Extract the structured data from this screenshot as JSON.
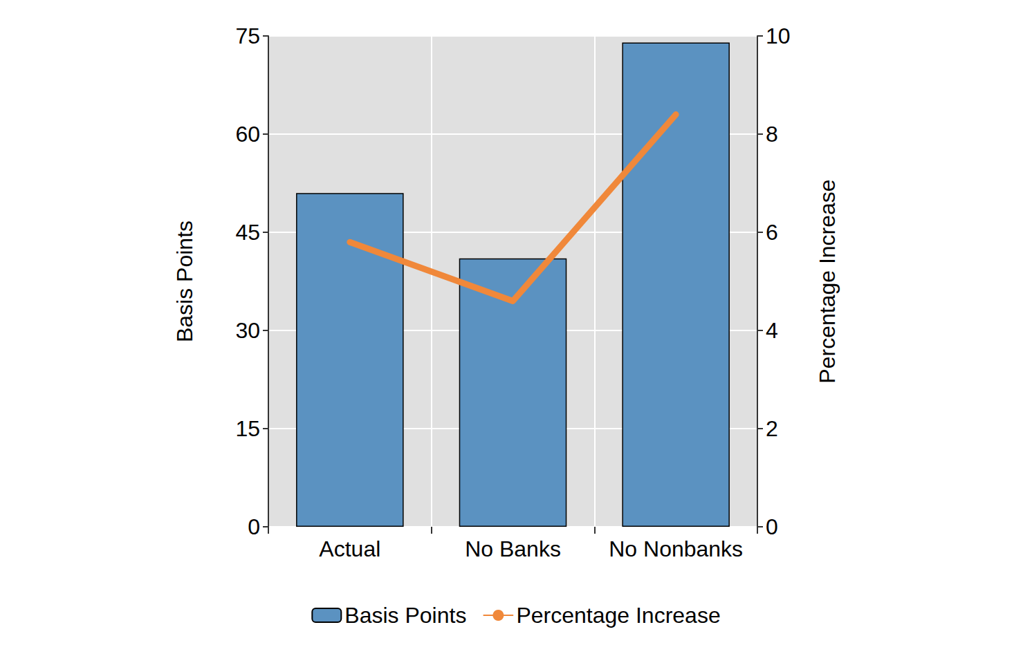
{
  "chart_data": {
    "type": "bar",
    "categories": [
      "Actual",
      "No Banks",
      "No Nonbanks"
    ],
    "series": [
      {
        "name": "Basis Points",
        "type": "bar",
        "color": "#5b92c1",
        "values": [
          51,
          41,
          74
        ]
      },
      {
        "name": "Percentage Increase",
        "type": "line",
        "axis": "y2",
        "color": "#f0883a",
        "values": [
          5.8,
          4.6,
          8.4
        ]
      }
    ],
    "ylabel": "Basis Points",
    "y2label": "Percentage Increase",
    "ylim": [
      0,
      75
    ],
    "yticks": [
      0,
      15,
      30,
      45,
      60,
      75
    ],
    "y2lim": [
      0,
      10
    ],
    "y2ticks": [
      0,
      2,
      4,
      6,
      8,
      10
    ],
    "grid": true,
    "legend": "bottom"
  }
}
